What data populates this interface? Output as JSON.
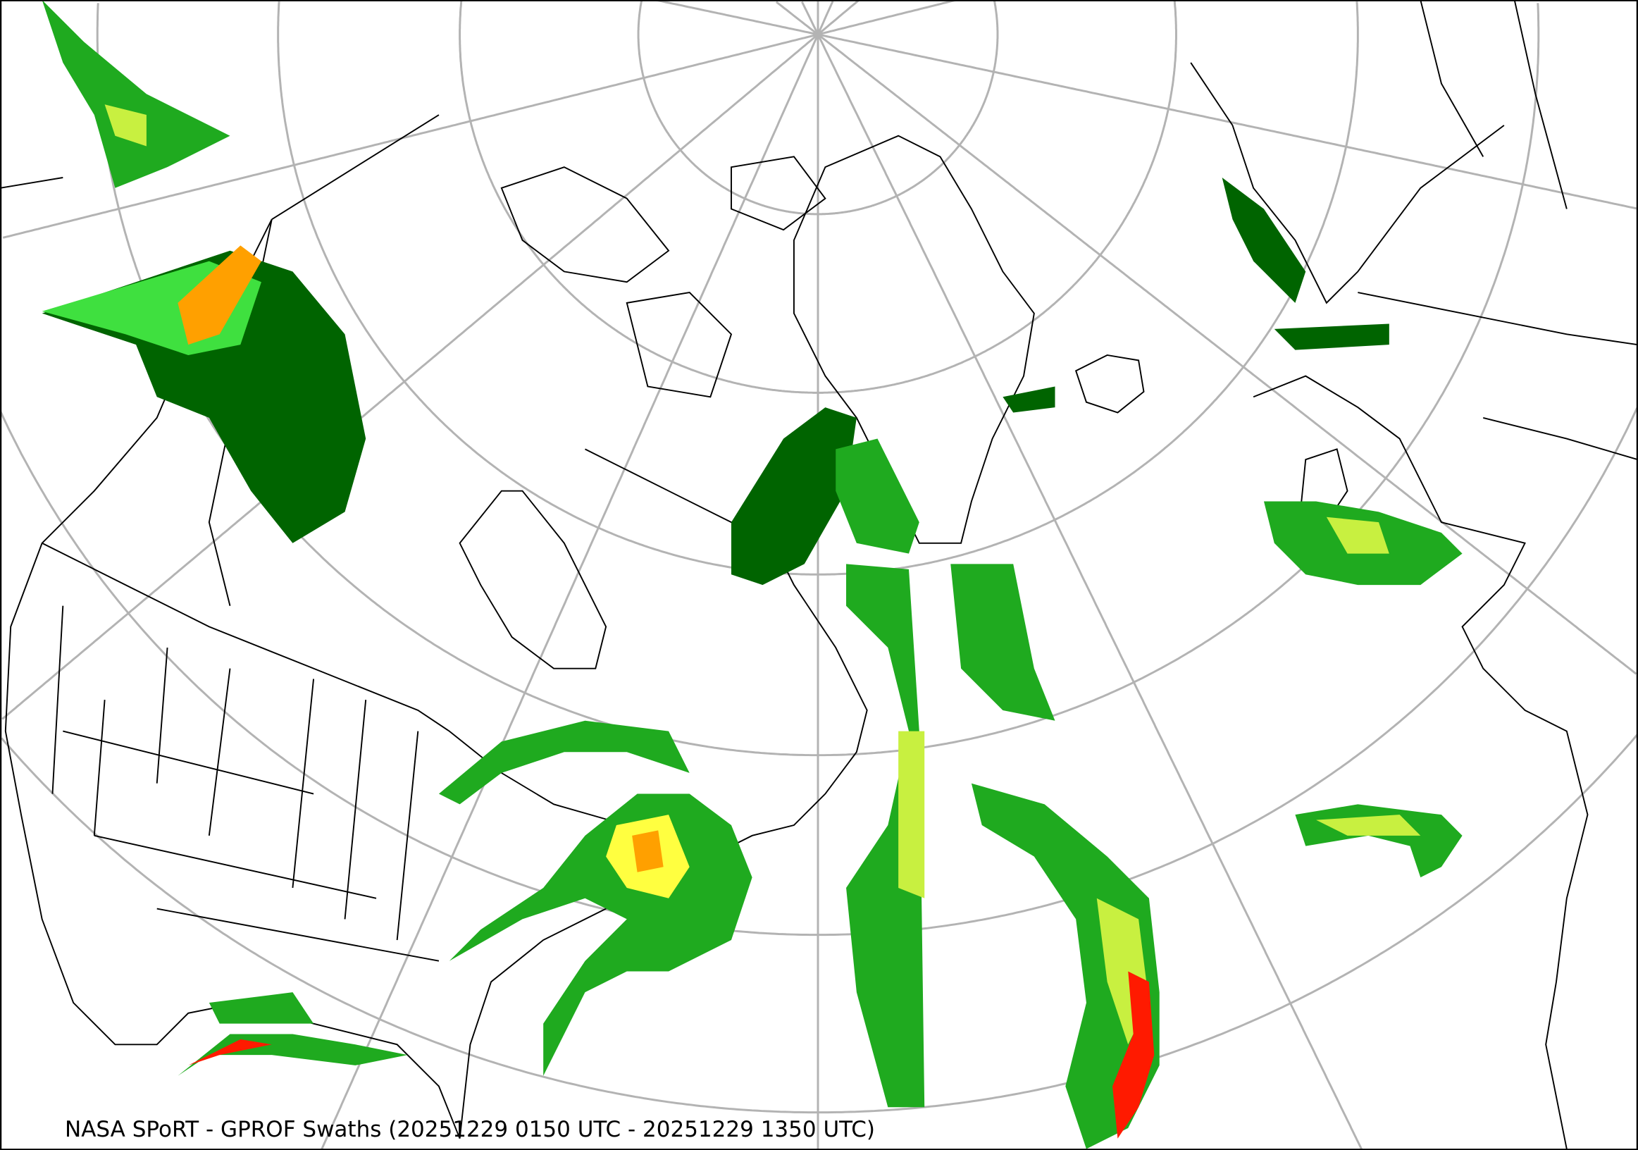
{
  "map": {
    "caption": "NASA SPoRT - GPROF Swaths (20251229 0150 UTC - 20251229 1350 UTC)",
    "projection": "north-polar-stereographic",
    "graticule_color": "#b3b3b3",
    "border_color": "#000000",
    "precip_colors": {
      "dark_green": "#006400",
      "green": "#1faa1f",
      "light_green": "#3fe03f",
      "yellow_green": "#c8f040",
      "yellow": "#ffff40",
      "orange": "#ffa000",
      "red": "#ff1a00"
    }
  }
}
